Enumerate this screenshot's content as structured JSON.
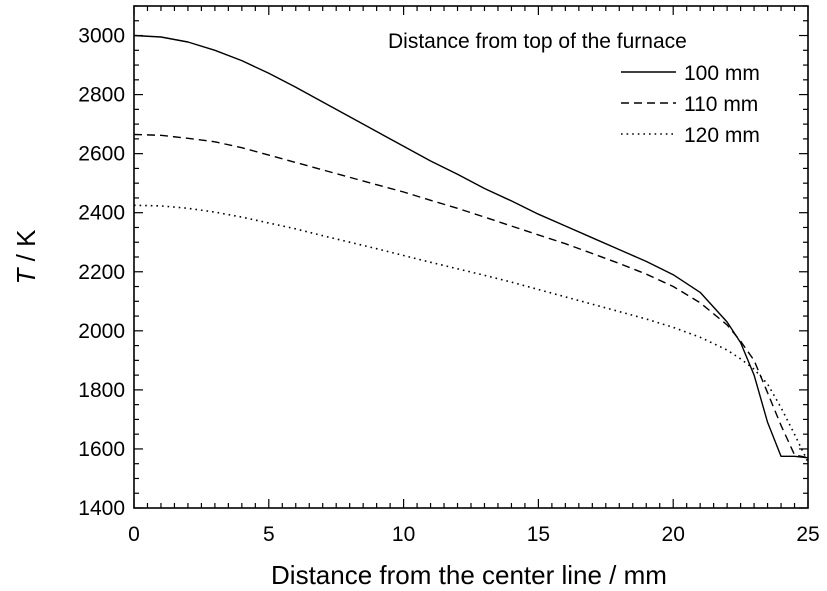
{
  "chart_data": {
    "type": "line",
    "title": "",
    "xlabel": "Distance from the center line / mm",
    "ylabel_italic": "T",
    "ylabel_rest": " / K",
    "xlim": [
      0,
      25
    ],
    "ylim": [
      1400,
      3100
    ],
    "xticks": [
      0,
      5,
      10,
      15,
      20,
      25
    ],
    "yticks": [
      1400,
      1600,
      1800,
      2000,
      2200,
      2400,
      2600,
      2800,
      3000
    ],
    "grid": false,
    "legend": {
      "title": "Distance from top of the furnace",
      "placement": "top-right"
    },
    "series": [
      {
        "name": "100 mm",
        "style": "solid",
        "x": [
          0,
          1,
          2,
          3,
          4,
          5,
          6,
          7,
          8,
          9,
          10,
          11,
          12,
          13,
          14,
          15,
          16,
          17,
          18,
          19,
          20,
          21,
          22,
          22.5,
          23,
          23.5,
          24,
          24.5,
          25
        ],
        "y": [
          3000,
          2995,
          2978,
          2950,
          2915,
          2872,
          2825,
          2775,
          2725,
          2675,
          2625,
          2575,
          2530,
          2482,
          2440,
          2395,
          2355,
          2315,
          2275,
          2235,
          2190,
          2130,
          2030,
          1960,
          1850,
          1690,
          1575,
          1575,
          1570
        ]
      },
      {
        "name": "110 mm",
        "style": "dashed",
        "x": [
          0,
          1,
          2,
          3,
          4,
          5,
          6,
          7,
          8,
          9,
          10,
          11,
          12,
          13,
          14,
          15,
          16,
          17,
          18,
          19,
          20,
          21,
          22,
          22.5,
          23,
          23.5,
          24,
          24.5,
          25
        ],
        "y": [
          2665,
          2662,
          2652,
          2640,
          2620,
          2595,
          2570,
          2545,
          2520,
          2495,
          2470,
          2442,
          2415,
          2385,
          2355,
          2325,
          2295,
          2262,
          2228,
          2192,
          2150,
          2095,
          2020,
          1965,
          1900,
          1790,
          1680,
          1580,
          1570
        ]
      },
      {
        "name": "120 mm",
        "style": "dotted",
        "x": [
          0,
          1,
          2,
          3,
          4,
          5,
          6,
          7,
          8,
          9,
          10,
          11,
          12,
          13,
          14,
          15,
          16,
          17,
          18,
          19,
          20,
          21,
          22,
          22.5,
          23,
          23.5,
          24,
          24.5,
          25
        ],
        "y": [
          2425,
          2423,
          2415,
          2402,
          2385,
          2365,
          2345,
          2322,
          2300,
          2278,
          2255,
          2232,
          2210,
          2188,
          2165,
          2140,
          2115,
          2090,
          2065,
          2040,
          2012,
          1978,
          1935,
          1905,
          1870,
          1820,
          1740,
          1650,
          1555
        ]
      }
    ]
  }
}
